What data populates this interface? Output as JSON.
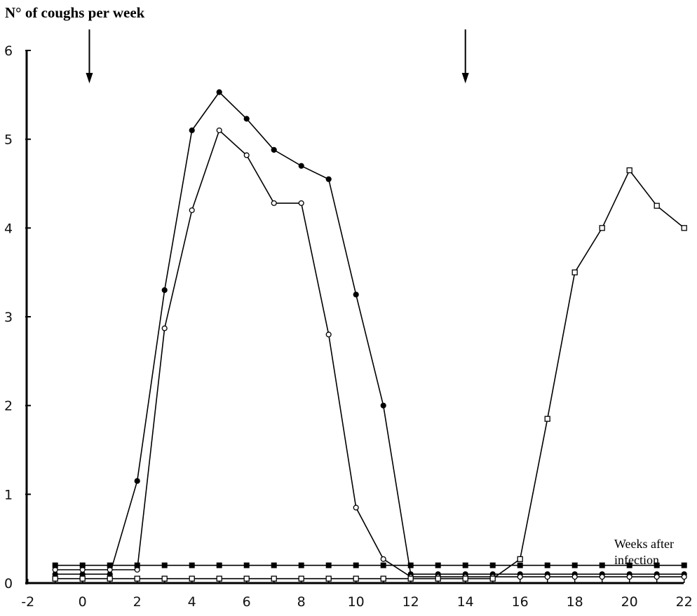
{
  "chart_data": {
    "type": "line",
    "title": "N° of coughs per week",
    "xlabel": "Weeks after infection",
    "ylabel": "",
    "xlim": [
      -2,
      22
    ],
    "ylim": [
      0,
      6
    ],
    "x_ticks": [
      -2,
      0,
      2,
      4,
      6,
      8,
      10,
      12,
      14,
      16,
      18,
      20,
      22
    ],
    "y_ticks": [
      0,
      1,
      2,
      3,
      4,
      5,
      6
    ],
    "grid": false,
    "arrows_at_x": [
      0.25,
      14
    ],
    "series": [
      {
        "marker": "filled-circle",
        "x": [
          -1,
          0,
          1,
          2,
          3,
          4,
          5,
          6,
          7,
          8,
          9,
          10,
          11,
          12,
          13,
          14,
          15,
          16,
          17,
          18,
          19,
          20,
          21,
          22
        ],
        "y": [
          0.1,
          0.1,
          0.1,
          1.15,
          3.3,
          5.1,
          5.53,
          5.23,
          4.88,
          4.7,
          4.55,
          3.25,
          2.0,
          0.1,
          0.1,
          0.1,
          0.1,
          0.1,
          0.1,
          0.1,
          0.1,
          0.1,
          0.1,
          0.1
        ]
      },
      {
        "marker": "open-circle",
        "x": [
          -1,
          0,
          1,
          2,
          3,
          4,
          5,
          6,
          7,
          8,
          9,
          10,
          11,
          12,
          13,
          14,
          15,
          16,
          17,
          18,
          19,
          20,
          21,
          22
        ],
        "y": [
          0.15,
          0.15,
          0.15,
          0.15,
          2.87,
          4.2,
          5.1,
          4.82,
          4.28,
          4.28,
          2.8,
          0.85,
          0.27,
          0.07,
          0.07,
          0.07,
          0.07,
          0.07,
          0.07,
          0.07,
          0.07,
          0.07,
          0.07,
          0.07
        ]
      },
      {
        "marker": "open-square",
        "x": [
          -1,
          0,
          1,
          2,
          3,
          4,
          5,
          6,
          7,
          8,
          9,
          10,
          11,
          12,
          13,
          14,
          15,
          16,
          17,
          18,
          19,
          20,
          21,
          22
        ],
        "y": [
          0.05,
          0.05,
          0.05,
          0.05,
          0.05,
          0.05,
          0.05,
          0.05,
          0.05,
          0.05,
          0.05,
          0.05,
          0.05,
          0.05,
          0.05,
          0.05,
          0.05,
          0.27,
          1.85,
          3.5,
          4.0,
          4.65,
          4.25,
          4.0
        ]
      },
      {
        "marker": "filled-square",
        "x": [
          -1,
          0,
          1,
          2,
          3,
          4,
          5,
          6,
          7,
          8,
          9,
          10,
          11,
          12,
          13,
          14,
          15,
          16,
          17,
          18,
          19,
          20,
          21,
          22
        ],
        "y": [
          0.2,
          0.2,
          0.2,
          0.2,
          0.2,
          0.2,
          0.2,
          0.2,
          0.2,
          0.2,
          0.2,
          0.2,
          0.2,
          0.2,
          0.2,
          0.2,
          0.2,
          0.2,
          0.2,
          0.2,
          0.2,
          0.2,
          0.2,
          0.2
        ]
      }
    ]
  },
  "annotations": {
    "weeks_line1": "Weeks after",
    "weeks_line2": "infection"
  }
}
